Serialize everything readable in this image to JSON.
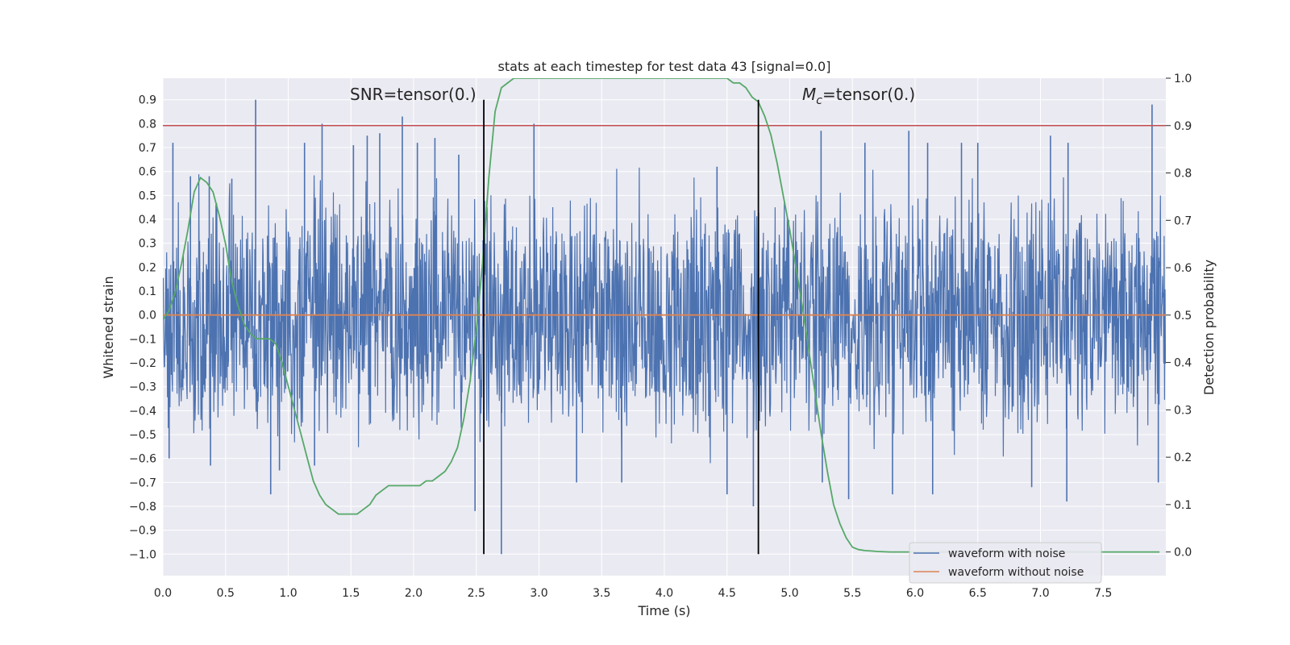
{
  "chart_data": {
    "type": "line",
    "title": "stats at each timestep for test data 43 [signal=0.0]",
    "xlabel": "Time (s)",
    "ylabel_left": "Whitened strain",
    "ylabel_right": "Detection probability",
    "xlim": [
      0.0,
      8.0
    ],
    "ylim_left": [
      -1.09,
      0.99
    ],
    "ylim_right": [
      -0.05,
      1.0
    ],
    "x_ticks": [
      0.0,
      0.5,
      1.0,
      1.5,
      2.0,
      2.5,
      3.0,
      3.5,
      4.0,
      4.5,
      5.0,
      5.5,
      6.0,
      6.5,
      7.0,
      7.5
    ],
    "y_ticks_left": [
      -1.0,
      -0.9,
      -0.8,
      -0.7,
      -0.6,
      -0.5,
      -0.4,
      -0.3,
      -0.2,
      -0.1,
      0.0,
      0.1,
      0.2,
      0.3,
      0.4,
      0.5,
      0.6,
      0.7,
      0.8,
      0.9
    ],
    "y_ticks_right": [
      0.0,
      0.1,
      0.2,
      0.3,
      0.4,
      0.5,
      0.6,
      0.7,
      0.8,
      0.9,
      1.0
    ],
    "grid": true,
    "legend_position": "bottom-right",
    "annotations": {
      "snr": "SNR=tensor(0.)",
      "mc_prefix": "M",
      "mc_sub": "c",
      "mc_suffix": "=tensor(0.)"
    },
    "vertical_lines_x": [
      2.56,
      4.75
    ],
    "threshold_right": 0.9,
    "series": [
      {
        "name": "waveform with noise",
        "color": "#4c72b0",
        "axis": "left",
        "description": "dense noisy strain, approx within [-0.6, 0.6] with spikes",
        "spikes": [
          [
            0.08,
            0.72
          ],
          [
            0.22,
            0.58
          ],
          [
            0.37,
            0.58
          ],
          [
            0.55,
            0.57
          ],
          [
            0.74,
            0.9
          ],
          [
            1.13,
            0.72
          ],
          [
            1.27,
            0.8
          ],
          [
            1.52,
            0.71
          ],
          [
            1.63,
            0.75
          ],
          [
            1.73,
            0.76
          ],
          [
            1.91,
            0.83
          ],
          [
            2.03,
            0.72
          ],
          [
            2.17,
            0.74
          ],
          [
            2.36,
            0.67
          ],
          [
            2.96,
            0.8
          ],
          [
            4.42,
            0.62
          ],
          [
            5.25,
            0.77
          ],
          [
            5.6,
            0.72
          ],
          [
            5.95,
            0.77
          ],
          [
            6.1,
            0.72
          ],
          [
            6.37,
            0.72
          ],
          [
            6.5,
            0.72
          ],
          [
            7.08,
            0.75
          ],
          [
            7.22,
            0.72
          ],
          [
            7.89,
            0.88
          ],
          [
            0.05,
            -0.6
          ],
          [
            0.38,
            -0.63
          ],
          [
            0.86,
            -0.75
          ],
          [
            0.93,
            -0.65
          ],
          [
            1.21,
            -0.63
          ],
          [
            2.49,
            -0.82
          ],
          [
            2.7,
            -1.0
          ],
          [
            3.3,
            -0.7
          ],
          [
            3.66,
            -0.7
          ],
          [
            4.5,
            -0.75
          ],
          [
            4.71,
            -0.8
          ],
          [
            5.26,
            -0.7
          ],
          [
            5.47,
            -0.77
          ],
          [
            5.82,
            -0.75
          ],
          [
            6.14,
            -0.75
          ],
          [
            6.93,
            -0.72
          ],
          [
            7.21,
            -0.78
          ],
          [
            7.94,
            -0.7
          ]
        ]
      },
      {
        "name": "waveform without noise",
        "color": "#dd8452",
        "axis": "left",
        "values_constant": 0.0
      },
      {
        "name": "",
        "color": "#55a868",
        "axis": "right",
        "x": [
          0.0,
          0.05,
          0.1,
          0.15,
          0.2,
          0.25,
          0.3,
          0.35,
          0.4,
          0.45,
          0.5,
          0.55,
          0.6,
          0.65,
          0.7,
          0.75,
          0.8,
          0.85,
          0.9,
          0.95,
          1.0,
          1.05,
          1.1,
          1.15,
          1.2,
          1.25,
          1.3,
          1.35,
          1.4,
          1.45,
          1.5,
          1.55,
          1.6,
          1.65,
          1.7,
          1.75,
          1.8,
          1.85,
          1.9,
          1.95,
          2.0,
          2.05,
          2.1,
          2.15,
          2.2,
          2.25,
          2.3,
          2.35,
          2.4,
          2.45,
          2.5,
          2.55,
          2.6,
          2.65,
          2.7,
          2.75,
          2.8,
          2.85,
          2.9,
          3.0,
          3.5,
          4.0,
          4.3,
          4.5,
          4.55,
          4.6,
          4.65,
          4.7,
          4.75,
          4.8,
          4.85,
          4.9,
          4.95,
          5.0,
          5.05,
          5.1,
          5.15,
          5.2,
          5.25,
          5.3,
          5.35,
          5.4,
          5.45,
          5.5,
          5.55,
          5.6,
          5.65,
          5.7,
          5.8,
          6.0,
          6.5,
          7.0,
          7.5,
          7.95
        ],
        "y": [
          0.49,
          0.51,
          0.55,
          0.61,
          0.68,
          0.76,
          0.79,
          0.78,
          0.76,
          0.71,
          0.65,
          0.57,
          0.52,
          0.48,
          0.46,
          0.45,
          0.45,
          0.45,
          0.44,
          0.4,
          0.35,
          0.3,
          0.25,
          0.2,
          0.15,
          0.12,
          0.1,
          0.09,
          0.08,
          0.08,
          0.08,
          0.08,
          0.09,
          0.1,
          0.12,
          0.13,
          0.14,
          0.14,
          0.14,
          0.14,
          0.14,
          0.14,
          0.15,
          0.15,
          0.16,
          0.17,
          0.19,
          0.22,
          0.28,
          0.36,
          0.47,
          0.61,
          0.79,
          0.93,
          0.98,
          0.99,
          1.0,
          1.0,
          1.0,
          1.0,
          1.0,
          1.0,
          1.0,
          1.0,
          0.99,
          0.99,
          0.98,
          0.96,
          0.95,
          0.92,
          0.88,
          0.82,
          0.75,
          0.68,
          0.6,
          0.52,
          0.43,
          0.34,
          0.25,
          0.17,
          0.1,
          0.06,
          0.03,
          0.01,
          0.005,
          0.003,
          0.002,
          0.001,
          0.0,
          0.0,
          0.0,
          0.0,
          0.0,
          0.0
        ]
      },
      {
        "name": "",
        "color": "#c44e52",
        "axis": "right",
        "values_constant": 0.9
      }
    ]
  }
}
